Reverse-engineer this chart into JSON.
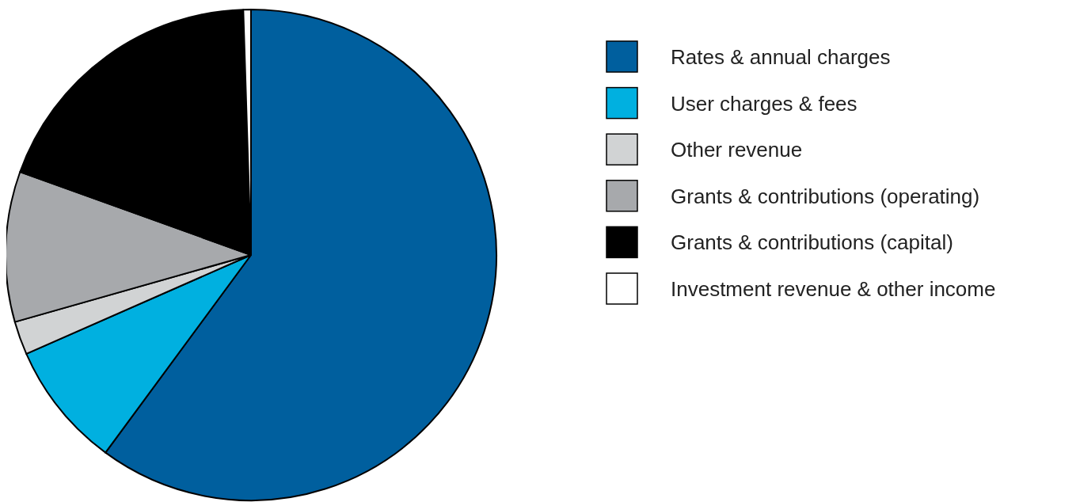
{
  "chart_data": {
    "type": "pie",
    "categories": [
      "Rates & annual charges",
      "User charges & fees",
      "Other revenue",
      "Grants & contributions (operating)",
      "Grants & contributions (capital)",
      "Investment revenue & other income"
    ],
    "values": [
      60.1,
      8.3,
      2.2,
      9.9,
      19.0,
      0.5
    ],
    "colors": [
      "#005f9e",
      "#00b0e0",
      "#d1d3d4",
      "#a7a9ac",
      "#000000",
      "#ffffff"
    ],
    "legend": "right"
  }
}
